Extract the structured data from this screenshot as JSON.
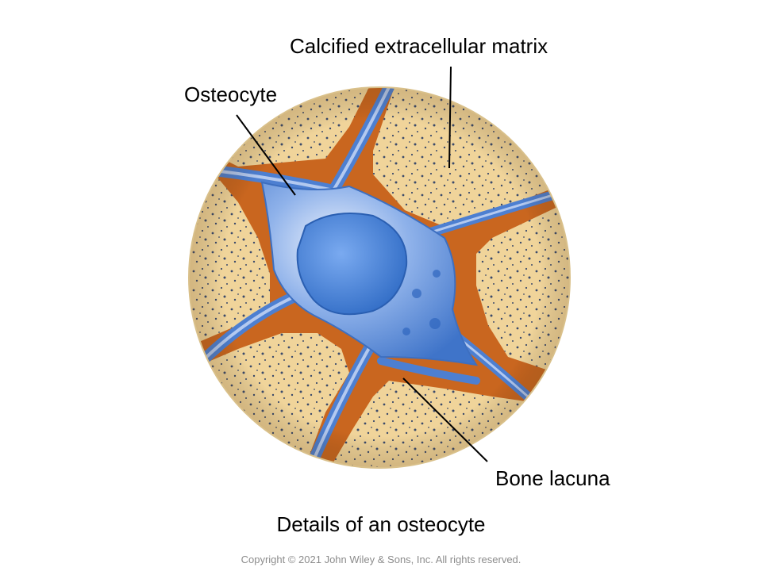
{
  "labels": {
    "matrix": "Calcified extracellular matrix",
    "osteocyte": "Osteocyte",
    "lacuna": "Bone lacuna"
  },
  "caption": "Details of an osteocyte",
  "copyright": "Copyright © 2021 John Wiley & Sons, Inc. All rights reserved.",
  "colors": {
    "matrix": "#f0d49a",
    "matrix_speckle": "#3b4a6b",
    "lacuna": "#c9661f",
    "cytoplasm": "#5b8fd9",
    "cytoplasm_light": "#dde8fb",
    "nucleus": "#3d7fd6",
    "leader_line": "#000000"
  }
}
